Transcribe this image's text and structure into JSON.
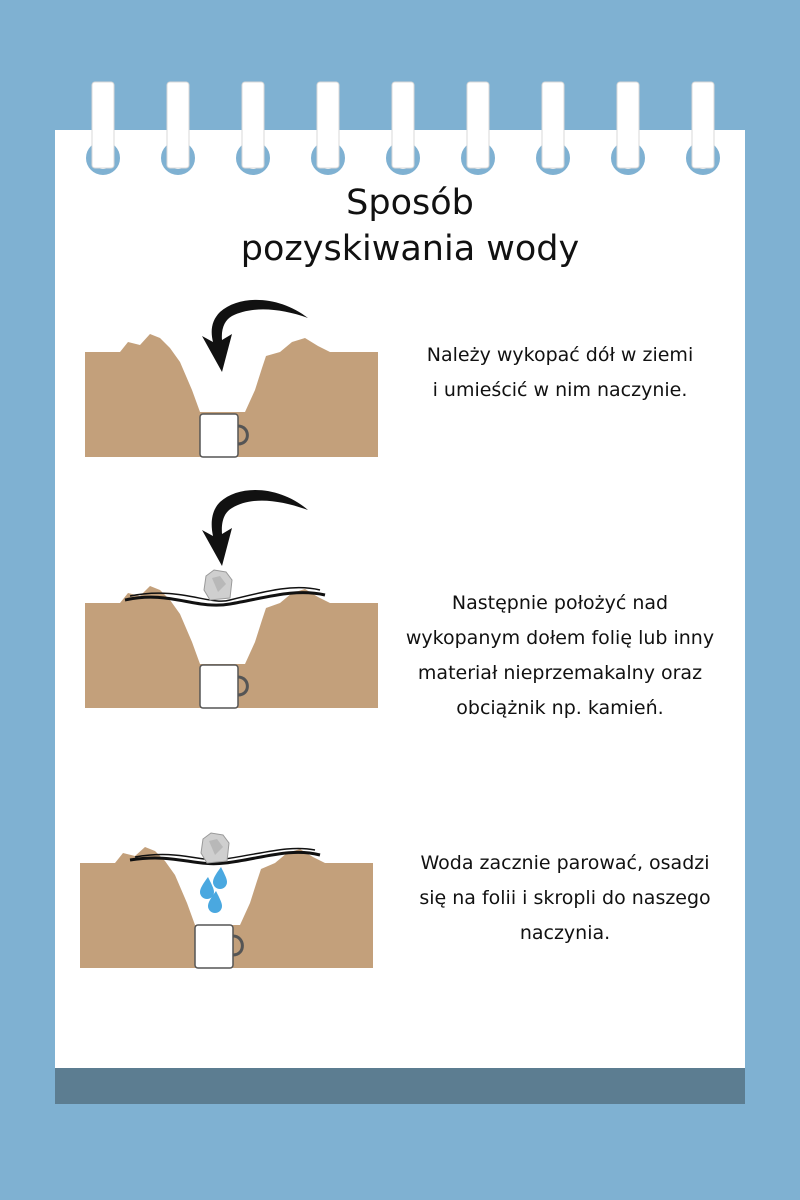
{
  "title": {
    "line1": "Sposób",
    "line2": "pozyskiwania wody"
  },
  "steps": [
    {
      "text_line1": "Należy wykopać dół w ziemi",
      "text_line2": "i umieścić w nim naczynie."
    },
    {
      "text_line1": "Następnie położyć nad",
      "text_line2": "wykopanym dołem folię lub inny",
      "text_line3": "materiał nieprzemakalny oraz",
      "text_line4": "obciążnik np. kamień."
    },
    {
      "text_line1": "Woda zacznie parować, osadzi",
      "text_line2": "się na folii i skropli do naszego",
      "text_line3": "naczynia."
    }
  ],
  "colors": {
    "background": "#7fb1d2",
    "page": "#ffffff",
    "footer_bar": "#5c7d91",
    "soil": "#c3a07b",
    "water": "#4aa8e0"
  }
}
